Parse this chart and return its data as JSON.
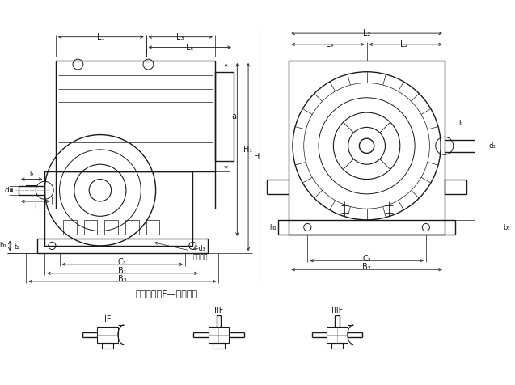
{
  "title": "",
  "bg_color": "#ffffff",
  "line_color": "#1a1a1a",
  "dim_color": "#1a1a1a",
  "text_color": "#1a1a1a",
  "figsize": [
    6.37,
    4.76
  ],
  "dpi": 100,
  "caption": "装配形式（F—带风扇）",
  "labels_IF": "IF",
  "labels_IIF": "IIF",
  "labels_IIIF": "IIIF"
}
